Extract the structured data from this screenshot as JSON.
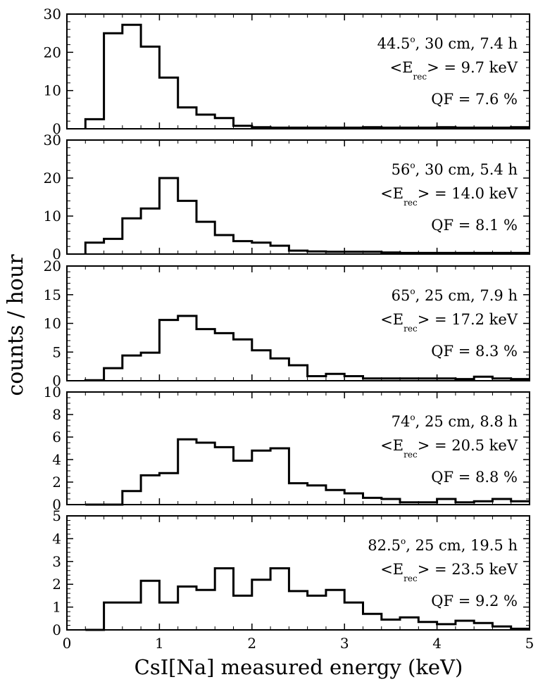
{
  "chart_data": {
    "type": "histogram",
    "xlabel": "CsI[Na] measured energy (keV)",
    "ylabel": "counts / hour",
    "xlim": [
      0,
      5
    ],
    "xticks": [
      "0",
      "1",
      "2",
      "3",
      "4",
      "5"
    ],
    "bin_width": 0.2,
    "bin_start": 0.2,
    "panels": [
      {
        "angle": "44.5",
        "angle_sup": "o",
        "rest": ", 30 cm, 7.4 h",
        "erec_left": "<E",
        "erec_sub": "rec",
        "erec_right": "> = 9.7 keV",
        "qf": "QF = 7.6 %",
        "ylim": [
          0,
          30
        ],
        "yticks": [
          "0",
          "10",
          "20",
          "30"
        ],
        "values": [
          2.5,
          25,
          27.2,
          21.5,
          13.4,
          5.6,
          3.7,
          2.8,
          0.8,
          0.4,
          0.3,
          0.3,
          0.3,
          0.3,
          0.3,
          0.4,
          0.3,
          0.3,
          0.3,
          0.4,
          0.3,
          0.3,
          0.3,
          0.4
        ]
      },
      {
        "angle": "56",
        "angle_sup": "o",
        "rest": ", 30 cm, 5.4 h",
        "erec_left": "<E",
        "erec_sub": "rec",
        "erec_right": "> = 14.0 keV",
        "qf": "QF = 8.1 %",
        "ylim": [
          0,
          30
        ],
        "yticks": [
          "0",
          "10",
          "20",
          "30"
        ],
        "values": [
          3,
          4,
          9.4,
          12,
          20,
          14,
          8.5,
          5,
          3.4,
          3,
          2.2,
          0.9,
          0.7,
          0.6,
          0.6,
          0.6,
          0.4,
          0.3,
          0.3,
          0.3,
          0.3,
          0.3,
          0.3,
          0.3
        ]
      },
      {
        "angle": "65",
        "angle_sup": "o",
        "rest": ", 25 cm, 7.9 h",
        "erec_left": "<E",
        "erec_sub": "rec",
        "erec_right": "> = 17.2 keV",
        "qf": "QF = 8.3 %",
        "ylim": [
          0,
          20
        ],
        "yticks": [
          "0",
          "5",
          "10",
          "15",
          "20"
        ],
        "values": [
          0.1,
          2.2,
          4.4,
          4.9,
          10.6,
          11.3,
          9,
          8.3,
          7.2,
          5.3,
          3.9,
          2.7,
          0.8,
          1.2,
          0.8,
          0.4,
          0.4,
          0.4,
          0.4,
          0.4,
          0.3,
          0.7,
          0.4,
          0.3
        ]
      },
      {
        "angle": "74",
        "angle_sup": "o",
        "rest": ", 25 cm, 8.8 h",
        "erec_left": "<E",
        "erec_sub": "rec",
        "erec_right": "> = 20.5 keV",
        "qf": "QF = 8.8 %",
        "ylim": [
          0,
          10
        ],
        "yticks": [
          "0",
          "2",
          "4",
          "6",
          "8",
          "10"
        ],
        "values": [
          0,
          0,
          1.2,
          2.6,
          2.8,
          5.8,
          5.5,
          5.1,
          3.9,
          4.8,
          5,
          1.9,
          1.7,
          1.3,
          1,
          0.6,
          0.5,
          0.2,
          0.2,
          0.5,
          0.2,
          0.3,
          0.5,
          0.3
        ]
      },
      {
        "angle": "82.5",
        "angle_sup": "o",
        "rest": ", 25 cm, 19.5 h",
        "erec_left": "<E",
        "erec_sub": "rec",
        "erec_right": "> = 23.5 keV",
        "qf": "QF = 9.2 %",
        "ylim": [
          0,
          5
        ],
        "yticks": [
          "0",
          "1",
          "2",
          "3",
          "4",
          "5"
        ],
        "values": [
          0,
          1.2,
          1.2,
          2.15,
          1.2,
          1.9,
          1.75,
          2.7,
          1.5,
          2.2,
          2.7,
          1.7,
          1.5,
          1.75,
          1.2,
          0.7,
          0.45,
          0.55,
          0.35,
          0.25,
          0.4,
          0.3,
          0.15,
          0.05
        ]
      }
    ]
  }
}
